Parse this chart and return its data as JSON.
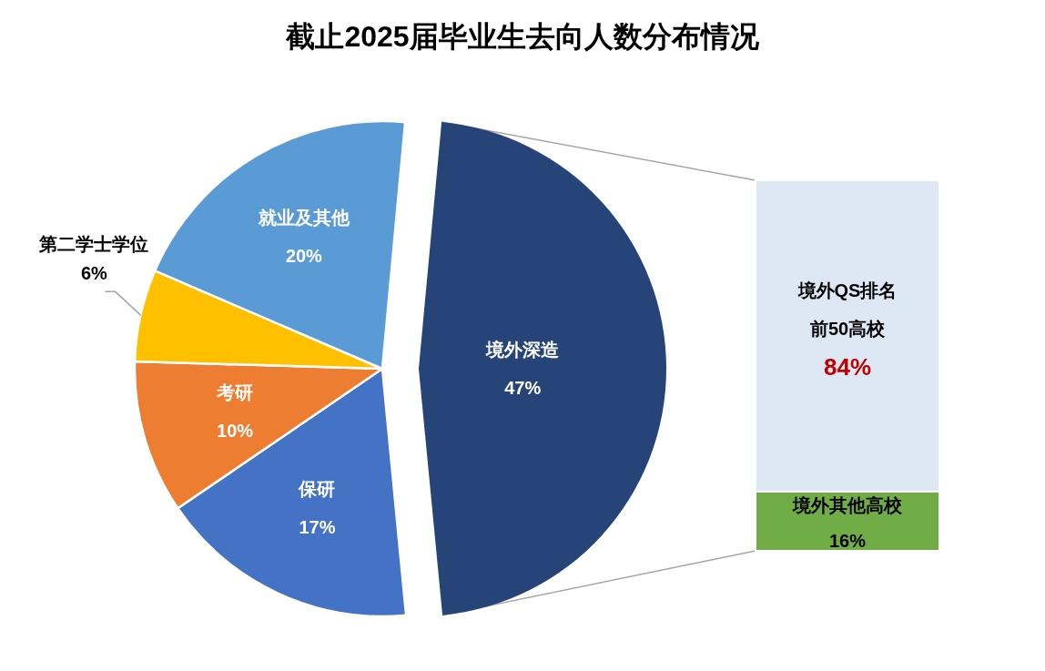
{
  "chart_data": [
    {
      "type": "pie",
      "title": "截止2025届毕业生去向人数分布情况",
      "categories": [
        "境外深造",
        "保研",
        "考研",
        "第二学士学位",
        "就业及其他"
      ],
      "values": [
        47,
        17,
        10,
        6,
        20
      ],
      "value_labels": [
        "47%",
        "17%",
        "10%",
        "6%",
        "20%"
      ],
      "colors": [
        "#264478",
        "#4472c4",
        "#ed7d31",
        "#ffc000",
        "#5b9bd5"
      ]
    },
    {
      "type": "bar",
      "stacked": true,
      "categories": [
        null
      ],
      "series": [
        {
          "name": "境外其他高校",
          "color": "#70ad47",
          "values": [
            16
          ],
          "value_labels": [
            "16%"
          ]
        },
        {
          "name": "境外QS排名前50高校",
          "color": "#dde8f4",
          "values": [
            84
          ],
          "value_labels": [
            "84%"
          ]
        }
      ]
    }
  ]
}
